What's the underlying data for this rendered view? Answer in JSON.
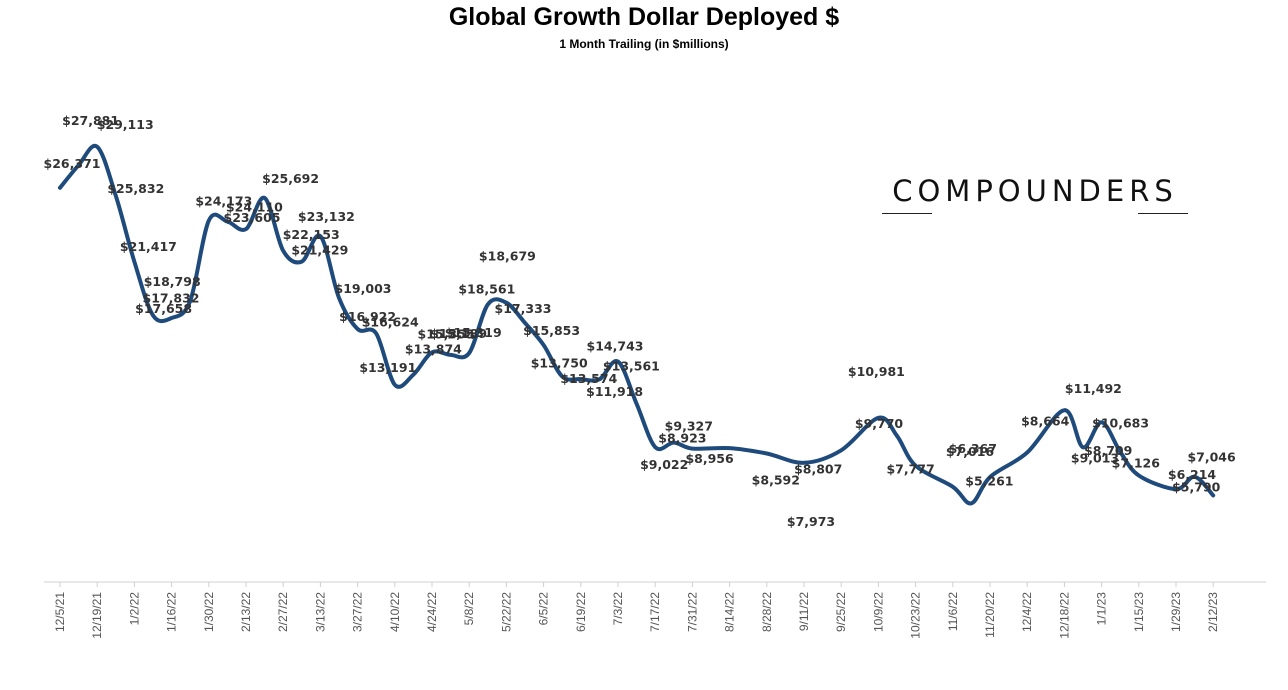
{
  "chart_data": {
    "type": "line",
    "title": "Global Growth Dollar Deployed $",
    "subtitle": "1 Month Trailing (in $millions)",
    "xlabel": "",
    "ylabel": "",
    "ylim": [
      0,
      32000
    ],
    "grid": false,
    "legend": "none",
    "line_color": "#1f4b7c",
    "x_ticks": [
      "12/5/21",
      "12/19/21",
      "1/2/22",
      "1/16/22",
      "1/30/22",
      "2/13/22",
      "2/27/22",
      "3/13/22",
      "3/27/22",
      "4/10/22",
      "4/24/22",
      "5/8/22",
      "5/22/22",
      "6/5/22",
      "6/19/22",
      "7/3/22",
      "7/17/22",
      "7/31/22",
      "8/14/22",
      "8/28/22",
      "9/11/22",
      "9/25/22",
      "10/9/22",
      "10/23/22",
      "11/6/22",
      "11/20/22",
      "12/4/22",
      "12/18/22",
      "1/1/23",
      "1/15/23",
      "1/29/23",
      "2/12/23"
    ],
    "series": [
      {
        "values": [
          {
            "x": 0,
            "y": 26371,
            "label": "$26,371"
          },
          {
            "x": 0.5,
            "y": 27881,
            "label": "$27,881"
          },
          {
            "x": 1,
            "y": 29113,
            "label": "$29,113"
          },
          {
            "x": 1.5,
            "y": 25832,
            "label": "$25,832"
          },
          {
            "x": 2,
            "y": 21417,
            "label": "$21,417"
          },
          {
            "x": 2.5,
            "y": 17832,
            "label": "$17,832"
          },
          {
            "x": 3,
            "y": 17658,
            "label": "$17,658"
          },
          {
            "x": 3.5,
            "y": 18798,
            "label": "$18,798"
          },
          {
            "x": 4,
            "y": 24173,
            "label": "$24,173"
          },
          {
            "x": 4.5,
            "y": 24110,
            "label": "$24,110"
          },
          {
            "x": 5,
            "y": 23605,
            "label": "$23,605"
          },
          {
            "x": 5.5,
            "y": 25692,
            "label": "$25,692"
          },
          {
            "x": 6,
            "y": 22153,
            "label": "$22,153"
          },
          {
            "x": 6.5,
            "y": 21429,
            "label": "$21,429"
          },
          {
            "x": 7,
            "y": 23132,
            "label": "$23,132"
          },
          {
            "x": 7.5,
            "y": 19003,
            "label": "$19,003"
          },
          {
            "x": 8,
            "y": 16922,
            "label": "$16,922"
          },
          {
            "x": 8.5,
            "y": 16624,
            "label": "$16,624"
          },
          {
            "x": 9,
            "y": 13191,
            "label": "$13,191"
          },
          {
            "x": 9.5,
            "y": 13874,
            "label": "$13,874"
          },
          {
            "x": 10,
            "y": 15355,
            "label": "$15,355"
          },
          {
            "x": 10.5,
            "y": 15189,
            "label": "$15,189"
          },
          {
            "x": 11,
            "y": 15319,
            "label": "$15,319"
          },
          {
            "x": 11.5,
            "y": 18561,
            "label": "$18,561"
          },
          {
            "x": 12,
            "y": 18679,
            "label": "$18,679"
          },
          {
            "x": 12.5,
            "y": 17333,
            "label": "$17,333"
          },
          {
            "x": 13,
            "y": 15853,
            "label": "$15,853"
          },
          {
            "x": 13.5,
            "y": 13750,
            "label": "$13,750"
          },
          {
            "x": 14,
            "y": 13574,
            "label": "$13,574"
          },
          {
            "x": 14.5,
            "y": 13561,
            "label": "$13,561"
          },
          {
            "x": 15,
            "y": 14743,
            "label": "$14,743"
          },
          {
            "x": 15.5,
            "y": 11918,
            "label": "$11,918"
          },
          {
            "x": 16,
            "y": 9022,
            "label": "$9,022"
          },
          {
            "x": 16.5,
            "y": 9327,
            "label": "$9,327"
          },
          {
            "x": 17,
            "y": 8923,
            "label": "$8,923"
          },
          {
            "x": 18,
            "y": 8956,
            "label": "$8,956"
          },
          {
            "x": 19,
            "y": 8592,
            "label": "$8,592"
          },
          {
            "x": 20,
            "y": 7973,
            "label": "$7,973"
          },
          {
            "x": 21,
            "y": 8807,
            "label": "$8,807"
          },
          {
            "x": 22,
            "y": 10981,
            "label": "$10,981"
          },
          {
            "x": 22.5,
            "y": 9770,
            "label": "$9,770"
          },
          {
            "x": 23,
            "y": 7777,
            "label": "$7,777"
          },
          {
            "x": 24,
            "y": 6367,
            "label": "$6,367"
          },
          {
            "x": 24.5,
            "y": 5261,
            "label": "$5,261"
          },
          {
            "x": 25,
            "y": 7016,
            "label": "$7,016"
          },
          {
            "x": 26,
            "y": 8664,
            "label": "$8,664"
          },
          {
            "x": 27,
            "y": 11492,
            "label": "$11,492"
          },
          {
            "x": 27.5,
            "y": 9013,
            "label": "$9,013"
          },
          {
            "x": 28,
            "y": 10683,
            "label": "$10,683"
          },
          {
            "x": 28.5,
            "y": 8709,
            "label": "$8,709"
          },
          {
            "x": 29,
            "y": 7126,
            "label": "$7,126"
          },
          {
            "x": 30,
            "y": 6214,
            "label": "$6,214"
          },
          {
            "x": 30.5,
            "y": 7046,
            "label": "$7,046"
          },
          {
            "x": 31,
            "y": 5790,
            "label": "$5,790"
          }
        ]
      }
    ]
  },
  "logo": {
    "text": "COMPOUNDERS"
  }
}
